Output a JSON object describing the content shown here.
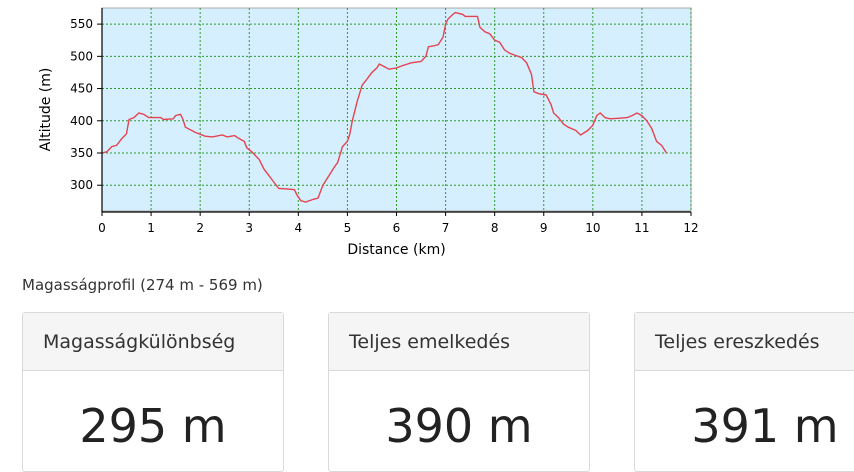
{
  "chart_data": {
    "type": "line",
    "xlabel": "Distance (km)",
    "ylabel": "Altitude (m)",
    "xlim": [
      0,
      12
    ],
    "ylim": [
      260,
      575
    ],
    "xticks": [
      0,
      1,
      2,
      3,
      4,
      5,
      6,
      7,
      8,
      9,
      10,
      11,
      12
    ],
    "yticks": [
      300,
      350,
      400,
      450,
      500,
      550
    ],
    "grid": true,
    "background_color": "#d6efff",
    "line_color": "#e4434f",
    "grid_color": "#2e9c2e",
    "series": [
      {
        "points": [
          [
            0.0,
            350
          ],
          [
            0.1,
            352
          ],
          [
            0.2,
            360
          ],
          [
            0.3,
            362
          ],
          [
            0.4,
            372
          ],
          [
            0.5,
            380
          ],
          [
            0.55,
            402
          ],
          [
            0.65,
            405
          ],
          [
            0.75,
            412
          ],
          [
            0.85,
            410
          ],
          [
            0.95,
            405
          ],
          [
            1.2,
            405
          ],
          [
            1.25,
            402
          ],
          [
            1.45,
            403
          ],
          [
            1.5,
            408
          ],
          [
            1.6,
            410
          ],
          [
            1.65,
            402
          ],
          [
            1.7,
            390
          ],
          [
            1.9,
            382
          ],
          [
            2.1,
            376
          ],
          [
            2.25,
            375
          ],
          [
            2.45,
            378
          ],
          [
            2.55,
            375
          ],
          [
            2.7,
            377
          ],
          [
            2.8,
            372
          ],
          [
            2.9,
            368
          ],
          [
            2.95,
            358
          ],
          [
            3.05,
            352
          ],
          [
            3.2,
            340
          ],
          [
            3.3,
            325
          ],
          [
            3.4,
            315
          ],
          [
            3.5,
            305
          ],
          [
            3.6,
            295
          ],
          [
            3.8,
            294
          ],
          [
            3.92,
            293
          ],
          [
            3.97,
            285
          ],
          [
            4.05,
            276
          ],
          [
            4.15,
            274
          ],
          [
            4.3,
            278
          ],
          [
            4.4,
            280
          ],
          [
            4.5,
            300
          ],
          [
            4.6,
            312
          ],
          [
            4.75,
            330
          ],
          [
            4.8,
            335
          ],
          [
            4.9,
            360
          ],
          [
            5.0,
            368
          ],
          [
            5.05,
            380
          ],
          [
            5.1,
            400
          ],
          [
            5.2,
            430
          ],
          [
            5.3,
            455
          ],
          [
            5.4,
            465
          ],
          [
            5.5,
            475
          ],
          [
            5.6,
            482
          ],
          [
            5.65,
            488
          ],
          [
            5.75,
            484
          ],
          [
            5.85,
            480
          ],
          [
            6.0,
            482
          ],
          [
            6.1,
            485
          ],
          [
            6.3,
            490
          ],
          [
            6.5,
            492
          ],
          [
            6.55,
            496
          ],
          [
            6.6,
            500
          ],
          [
            6.65,
            515
          ],
          [
            6.75,
            516
          ],
          [
            6.85,
            518
          ],
          [
            6.95,
            530
          ],
          [
            7.0,
            550
          ],
          [
            7.05,
            558
          ],
          [
            7.15,
            565
          ],
          [
            7.2,
            568
          ],
          [
            7.25,
            567
          ],
          [
            7.35,
            565
          ],
          [
            7.4,
            562
          ],
          [
            7.65,
            562
          ],
          [
            7.7,
            545
          ],
          [
            7.8,
            538
          ],
          [
            7.9,
            535
          ],
          [
            8.0,
            525
          ],
          [
            8.1,
            522
          ],
          [
            8.2,
            510
          ],
          [
            8.3,
            505
          ],
          [
            8.4,
            502
          ],
          [
            8.55,
            498
          ],
          [
            8.65,
            490
          ],
          [
            8.75,
            472
          ],
          [
            8.8,
            445
          ],
          [
            8.9,
            442
          ],
          [
            9.05,
            440
          ],
          [
            9.15,
            425
          ],
          [
            9.2,
            412
          ],
          [
            9.3,
            405
          ],
          [
            9.4,
            395
          ],
          [
            9.5,
            390
          ],
          [
            9.65,
            385
          ],
          [
            9.75,
            378
          ],
          [
            9.9,
            385
          ],
          [
            10.0,
            393
          ],
          [
            10.08,
            408
          ],
          [
            10.15,
            412
          ],
          [
            10.25,
            405
          ],
          [
            10.35,
            403
          ],
          [
            10.55,
            404
          ],
          [
            10.7,
            405
          ],
          [
            10.8,
            408
          ],
          [
            10.9,
            412
          ],
          [
            11.0,
            408
          ],
          [
            11.1,
            400
          ],
          [
            11.2,
            388
          ],
          [
            11.25,
            378
          ],
          [
            11.3,
            368
          ],
          [
            11.4,
            362
          ],
          [
            11.45,
            356
          ],
          [
            11.5,
            350
          ]
        ]
      }
    ]
  },
  "caption": "Magasságprofil (274 m - 569 m)",
  "cards": [
    {
      "title": "Magasságkülönbség",
      "value": "295 m"
    },
    {
      "title": "Teljes emelkedés",
      "value": "390 m"
    },
    {
      "title": "Teljes ereszkedés",
      "value": "391 m"
    }
  ]
}
